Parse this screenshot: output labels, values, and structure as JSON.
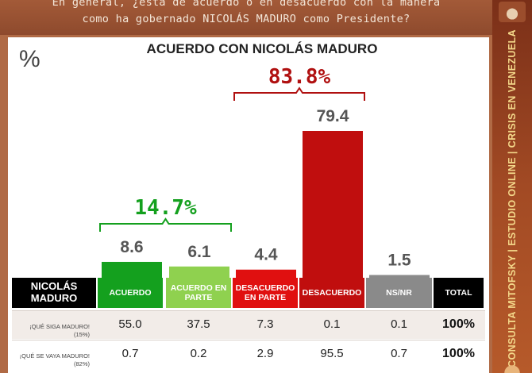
{
  "header": {
    "line1": "En general, ¿está de acuerdo o en desacuerdo con la manera",
    "line2": "como ha gobernado NICOLÁS MADURO como Presidente?"
  },
  "sidebar": {
    "text": "CONSULTA MITOFSKY | ESTUDIO ONLINE | CRISIS EN VENEZUELA"
  },
  "percent_symbol": "%",
  "colors": {
    "acuerdo": "#14a01e",
    "acuerdo_parte": "#8fd14f",
    "desacuerdo_parte": "#e01010",
    "desacuerdo": "#c00e0e",
    "nsnr": "#8a8a8a",
    "total": "#000000",
    "label_bg": "#000000",
    "brand": "#9b4a2a"
  },
  "chart_data": {
    "type": "bar",
    "title": "ACUERDO CON NICOLÁS MADURO",
    "categories": [
      "ACUERDO",
      "ACUERDO EN PARTE",
      "DESACUERDO EN PARTE",
      "DESACUERDO",
      "NS/NR"
    ],
    "values": [
      8.6,
      6.1,
      4.4,
      79.4,
      1.5
    ],
    "value_labels": [
      "8.6",
      "6.1",
      "4.4",
      "79.4",
      "1.5"
    ],
    "ylim": [
      0,
      100
    ],
    "bracket_totals": [
      {
        "label": "14.7%",
        "from": 0,
        "to": 1,
        "color": "#14a01e"
      },
      {
        "label": "83.8%",
        "from": 2,
        "to": 3,
        "color": "#b01010"
      }
    ]
  },
  "table": {
    "corner_label": "NICOLÁS MADURO",
    "total_header": "TOTAL",
    "rows": [
      {
        "label": "¡QUÉ SIGA MADURO!",
        "sub": "(15%)",
        "values": [
          "55.0",
          "37.5",
          "7.3",
          "0.1",
          "0.1"
        ],
        "total": "100%"
      },
      {
        "label": "¡QUÉ SE VAYA MADURO!",
        "sub": "(82%)",
        "values": [
          "0.7",
          "0.2",
          "2.9",
          "95.5",
          "0.7"
        ],
        "total": "100%"
      }
    ]
  }
}
